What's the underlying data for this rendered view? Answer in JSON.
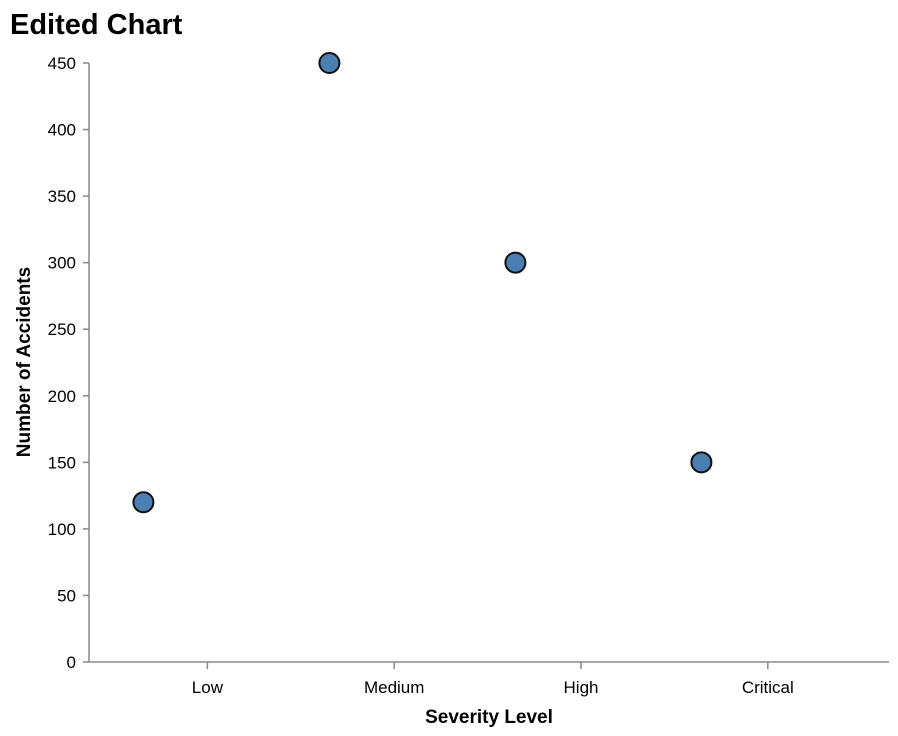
{
  "chart_data": {
    "type": "scatter",
    "title": "Edited Chart",
    "xlabel": "Severity Level",
    "ylabel": "Number of Accidents",
    "x_tick_labels": [
      "Low",
      "Medium",
      "High",
      "Critical"
    ],
    "y_ticks": [
      "0",
      "50",
      "100",
      "150",
      "200",
      "250",
      "300",
      "350",
      "400",
      "450"
    ],
    "ylim": [
      0,
      450
    ],
    "grid": false,
    "points": [
      {
        "x": "Low",
        "y": 120
      },
      {
        "x": "Medium",
        "y": 450
      },
      {
        "x": "High",
        "y": 300
      },
      {
        "x": "Critical",
        "y": 150
      }
    ],
    "colors": {
      "marker_fill": "#4a7fb3",
      "marker_stroke": "#111111"
    }
  }
}
